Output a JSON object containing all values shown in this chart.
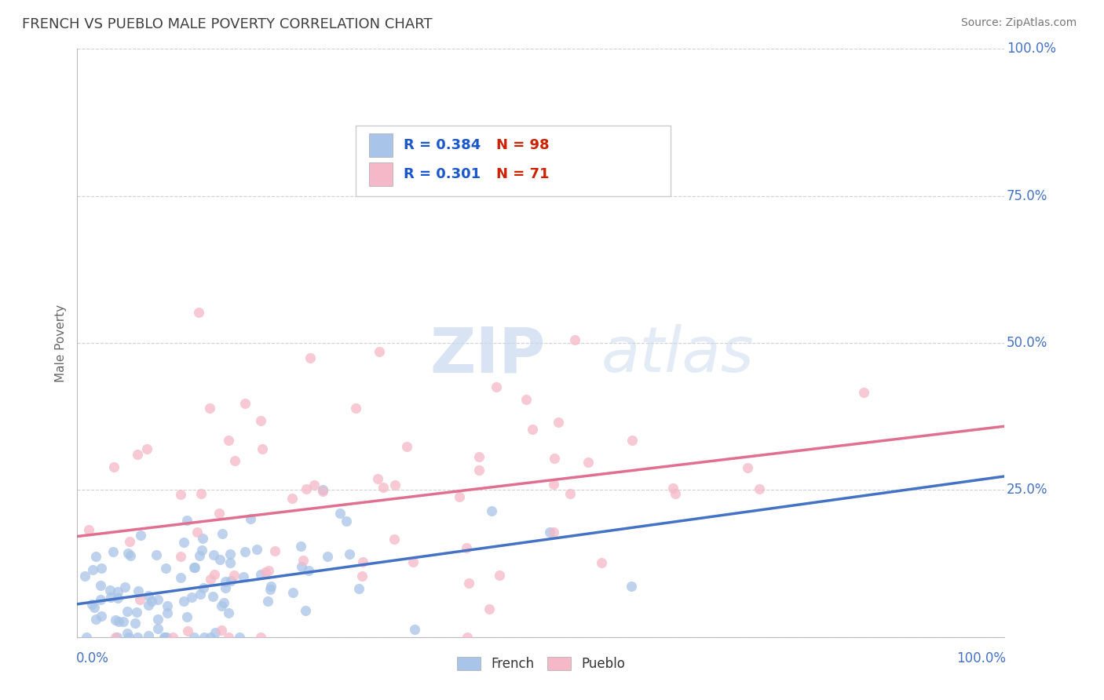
{
  "title": "FRENCH VS PUEBLO MALE POVERTY CORRELATION CHART",
  "source_text": "Source: ZipAtlas.com",
  "ylabel": "Male Poverty",
  "watermark_zip": "ZIP",
  "watermark_atlas": "atlas",
  "french_R": 0.384,
  "french_N": 98,
  "pueblo_R": 0.301,
  "pueblo_N": 71,
  "french_color": "#a8c4e8",
  "pueblo_color": "#f5b8c8",
  "french_line_color": "#4472c4",
  "pueblo_line_color": "#e07090",
  "background_color": "#ffffff",
  "grid_color": "#cccccc",
  "title_color": "#404040",
  "legend_R_color": "#1a56cc",
  "legend_N_color": "#cc2200",
  "axis_label_color": "#4472c4",
  "xlim": [
    0.0,
    1.0
  ],
  "ylim": [
    0.0,
    1.0
  ],
  "ytick_vals": [
    0.0,
    0.25,
    0.5,
    0.75,
    1.0
  ],
  "ytick_labels": [
    "",
    "25.0%",
    "50.0%",
    "75.0%",
    "100.0%"
  ]
}
